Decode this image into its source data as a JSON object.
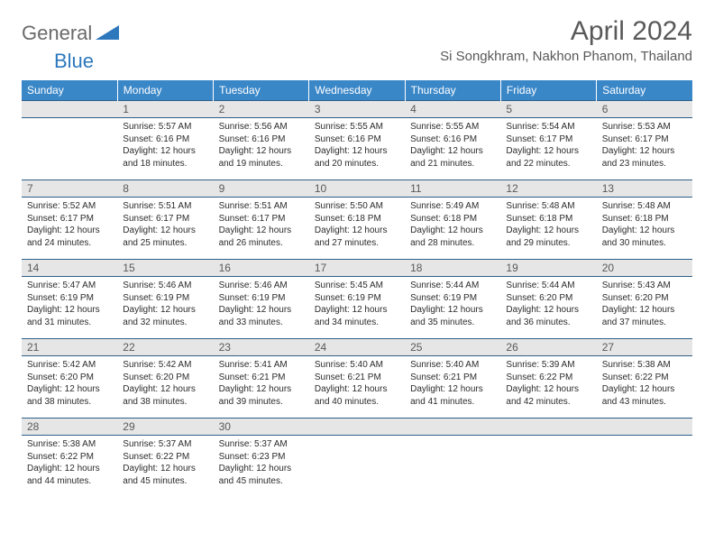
{
  "brand": {
    "part1": "General",
    "part2": "Blue"
  },
  "title": "April 2024",
  "location": "Si Songkhram, Nakhon Phanom, Thailand",
  "colors": {
    "header_bg": "#3a87c8",
    "header_text": "#ffffff",
    "daynum_bg": "#e6e6e6",
    "border": "#2d5f8a",
    "title_text": "#595959",
    "body_text": "#2b2b2b",
    "logo_gray": "#6a6a6a",
    "logo_blue": "#2d78bd"
  },
  "weekdays": [
    "Sunday",
    "Monday",
    "Tuesday",
    "Wednesday",
    "Thursday",
    "Friday",
    "Saturday"
  ],
  "weeks": [
    [
      {
        "blank": true
      },
      {
        "n": "1",
        "sr": "5:57 AM",
        "ss": "6:16 PM",
        "dl": "12 hours and 18 minutes."
      },
      {
        "n": "2",
        "sr": "5:56 AM",
        "ss": "6:16 PM",
        "dl": "12 hours and 19 minutes."
      },
      {
        "n": "3",
        "sr": "5:55 AM",
        "ss": "6:16 PM",
        "dl": "12 hours and 20 minutes."
      },
      {
        "n": "4",
        "sr": "5:55 AM",
        "ss": "6:16 PM",
        "dl": "12 hours and 21 minutes."
      },
      {
        "n": "5",
        "sr": "5:54 AM",
        "ss": "6:17 PM",
        "dl": "12 hours and 22 minutes."
      },
      {
        "n": "6",
        "sr": "5:53 AM",
        "ss": "6:17 PM",
        "dl": "12 hours and 23 minutes."
      }
    ],
    [
      {
        "n": "7",
        "sr": "5:52 AM",
        "ss": "6:17 PM",
        "dl": "12 hours and 24 minutes."
      },
      {
        "n": "8",
        "sr": "5:51 AM",
        "ss": "6:17 PM",
        "dl": "12 hours and 25 minutes."
      },
      {
        "n": "9",
        "sr": "5:51 AM",
        "ss": "6:17 PM",
        "dl": "12 hours and 26 minutes."
      },
      {
        "n": "10",
        "sr": "5:50 AM",
        "ss": "6:18 PM",
        "dl": "12 hours and 27 minutes."
      },
      {
        "n": "11",
        "sr": "5:49 AM",
        "ss": "6:18 PM",
        "dl": "12 hours and 28 minutes."
      },
      {
        "n": "12",
        "sr": "5:48 AM",
        "ss": "6:18 PM",
        "dl": "12 hours and 29 minutes."
      },
      {
        "n": "13",
        "sr": "5:48 AM",
        "ss": "6:18 PM",
        "dl": "12 hours and 30 minutes."
      }
    ],
    [
      {
        "n": "14",
        "sr": "5:47 AM",
        "ss": "6:19 PM",
        "dl": "12 hours and 31 minutes."
      },
      {
        "n": "15",
        "sr": "5:46 AM",
        "ss": "6:19 PM",
        "dl": "12 hours and 32 minutes."
      },
      {
        "n": "16",
        "sr": "5:46 AM",
        "ss": "6:19 PM",
        "dl": "12 hours and 33 minutes."
      },
      {
        "n": "17",
        "sr": "5:45 AM",
        "ss": "6:19 PM",
        "dl": "12 hours and 34 minutes."
      },
      {
        "n": "18",
        "sr": "5:44 AM",
        "ss": "6:19 PM",
        "dl": "12 hours and 35 minutes."
      },
      {
        "n": "19",
        "sr": "5:44 AM",
        "ss": "6:20 PM",
        "dl": "12 hours and 36 minutes."
      },
      {
        "n": "20",
        "sr": "5:43 AM",
        "ss": "6:20 PM",
        "dl": "12 hours and 37 minutes."
      }
    ],
    [
      {
        "n": "21",
        "sr": "5:42 AM",
        "ss": "6:20 PM",
        "dl": "12 hours and 38 minutes."
      },
      {
        "n": "22",
        "sr": "5:42 AM",
        "ss": "6:20 PM",
        "dl": "12 hours and 38 minutes."
      },
      {
        "n": "23",
        "sr": "5:41 AM",
        "ss": "6:21 PM",
        "dl": "12 hours and 39 minutes."
      },
      {
        "n": "24",
        "sr": "5:40 AM",
        "ss": "6:21 PM",
        "dl": "12 hours and 40 minutes."
      },
      {
        "n": "25",
        "sr": "5:40 AM",
        "ss": "6:21 PM",
        "dl": "12 hours and 41 minutes."
      },
      {
        "n": "26",
        "sr": "5:39 AM",
        "ss": "6:22 PM",
        "dl": "12 hours and 42 minutes."
      },
      {
        "n": "27",
        "sr": "5:38 AM",
        "ss": "6:22 PM",
        "dl": "12 hours and 43 minutes."
      }
    ],
    [
      {
        "n": "28",
        "sr": "5:38 AM",
        "ss": "6:22 PM",
        "dl": "12 hours and 44 minutes."
      },
      {
        "n": "29",
        "sr": "5:37 AM",
        "ss": "6:22 PM",
        "dl": "12 hours and 45 minutes."
      },
      {
        "n": "30",
        "sr": "5:37 AM",
        "ss": "6:23 PM",
        "dl": "12 hours and 45 minutes."
      },
      {
        "blank": true
      },
      {
        "blank": true
      },
      {
        "blank": true
      },
      {
        "blank": true
      }
    ]
  ],
  "labels": {
    "sunrise": "Sunrise:",
    "sunset": "Sunset:",
    "daylight": "Daylight:"
  }
}
